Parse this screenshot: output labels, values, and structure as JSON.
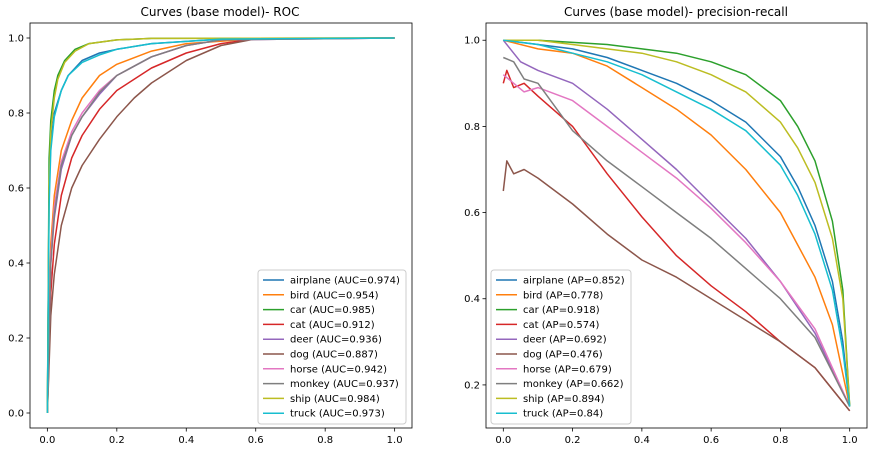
{
  "chart_data": [
    {
      "type": "line",
      "title": "Curves (base model)- ROC",
      "xlabel": "",
      "ylabel": "",
      "xlim": [
        -0.05,
        1.05
      ],
      "ylim": [
        -0.04,
        1.04
      ],
      "xticks": [
        "0.0",
        "0.2",
        "0.4",
        "0.6",
        "0.8",
        "1.0"
      ],
      "yticks": [
        "0.0",
        "0.2",
        "0.4",
        "0.6",
        "0.8",
        "1.0"
      ],
      "grid": false,
      "legend_position": "bottom-right",
      "series": [
        {
          "name": "airplane (AUC=0.974)",
          "color": "#1f77b4",
          "x": [
            0,
            0.005,
            0.01,
            0.02,
            0.04,
            0.06,
            0.1,
            0.15,
            0.2,
            0.3,
            0.5,
            1.0
          ],
          "y": [
            0,
            0.6,
            0.72,
            0.8,
            0.86,
            0.9,
            0.94,
            0.96,
            0.97,
            0.985,
            0.997,
            1.0
          ]
        },
        {
          "name": "bird (AUC=0.954)",
          "color": "#ff7f0e",
          "x": [
            0,
            0.01,
            0.02,
            0.04,
            0.07,
            0.1,
            0.15,
            0.2,
            0.3,
            0.4,
            0.6,
            1.0
          ],
          "y": [
            0,
            0.45,
            0.58,
            0.7,
            0.78,
            0.84,
            0.9,
            0.93,
            0.965,
            0.985,
            0.998,
            1.0
          ]
        },
        {
          "name": "car (AUC=0.985)",
          "color": "#2ca02c",
          "x": [
            0,
            0.005,
            0.01,
            0.02,
            0.03,
            0.05,
            0.08,
            0.12,
            0.2,
            0.3,
            1.0
          ],
          "y": [
            0,
            0.68,
            0.78,
            0.86,
            0.9,
            0.94,
            0.97,
            0.985,
            0.995,
            0.999,
            1.0
          ]
        },
        {
          "name": "cat (AUC=0.912)",
          "color": "#d62728",
          "x": [
            0,
            0.01,
            0.02,
            0.04,
            0.07,
            0.1,
            0.15,
            0.2,
            0.3,
            0.4,
            0.5,
            0.6,
            1.0
          ],
          "y": [
            0,
            0.32,
            0.45,
            0.58,
            0.68,
            0.74,
            0.81,
            0.86,
            0.92,
            0.96,
            0.985,
            0.998,
            1.0
          ]
        },
        {
          "name": "deer (AUC=0.936)",
          "color": "#9467bd",
          "x": [
            0,
            0.01,
            0.02,
            0.04,
            0.07,
            0.1,
            0.15,
            0.2,
            0.3,
            0.4,
            0.5,
            1.0
          ],
          "y": [
            0,
            0.4,
            0.52,
            0.65,
            0.74,
            0.79,
            0.85,
            0.9,
            0.95,
            0.98,
            0.995,
            1.0
          ]
        },
        {
          "name": "dog (AUC=0.887)",
          "color": "#8c564b",
          "x": [
            0,
            0.01,
            0.02,
            0.04,
            0.07,
            0.1,
            0.15,
            0.2,
            0.25,
            0.3,
            0.4,
            0.5,
            0.6,
            1.0
          ],
          "y": [
            0,
            0.26,
            0.37,
            0.5,
            0.6,
            0.66,
            0.73,
            0.79,
            0.84,
            0.88,
            0.94,
            0.98,
            0.998,
            1.0
          ]
        },
        {
          "name": "horse (AUC=0.942)",
          "color": "#e377c2",
          "x": [
            0,
            0.01,
            0.02,
            0.04,
            0.07,
            0.1,
            0.15,
            0.2,
            0.3,
            0.4,
            0.5,
            1.0
          ],
          "y": [
            0,
            0.42,
            0.55,
            0.67,
            0.75,
            0.8,
            0.86,
            0.9,
            0.95,
            0.98,
            0.995,
            1.0
          ]
        },
        {
          "name": "monkey (AUC=0.937)",
          "color": "#7f7f7f",
          "x": [
            0,
            0.01,
            0.02,
            0.04,
            0.07,
            0.1,
            0.15,
            0.2,
            0.3,
            0.4,
            0.5,
            1.0
          ],
          "y": [
            0,
            0.4,
            0.53,
            0.66,
            0.74,
            0.79,
            0.855,
            0.9,
            0.95,
            0.98,
            0.995,
            1.0
          ]
        },
        {
          "name": "ship (AUC=0.984)",
          "color": "#bcbd22",
          "x": [
            0,
            0.005,
            0.01,
            0.02,
            0.03,
            0.05,
            0.08,
            0.12,
            0.2,
            0.3,
            1.0
          ],
          "y": [
            0,
            0.6,
            0.75,
            0.84,
            0.89,
            0.935,
            0.965,
            0.985,
            0.995,
            0.999,
            1.0
          ]
        },
        {
          "name": "truck (AUC=0.973)",
          "color": "#17becf",
          "x": [
            0,
            0.005,
            0.01,
            0.02,
            0.04,
            0.06,
            0.1,
            0.15,
            0.2,
            0.3,
            0.5,
            1.0
          ],
          "y": [
            0,
            0.55,
            0.7,
            0.79,
            0.86,
            0.9,
            0.935,
            0.955,
            0.97,
            0.985,
            0.997,
            1.0
          ]
        }
      ]
    },
    {
      "type": "line",
      "title": "Curves (base model)- precision-recall",
      "xlabel": "",
      "ylabel": "",
      "xlim": [
        -0.05,
        1.05
      ],
      "ylim": [
        0.1,
        1.04
      ],
      "xticks": [
        "0.0",
        "0.2",
        "0.4",
        "0.6",
        "0.8",
        "1.0"
      ],
      "yticks": [
        "0.2",
        "0.4",
        "0.6",
        "0.8",
        "1.0"
      ],
      "grid": false,
      "legend_position": "bottom-left",
      "series": [
        {
          "name": "airplane (AP=0.852)",
          "color": "#1f77b4",
          "x": [
            0,
            0.1,
            0.2,
            0.3,
            0.4,
            0.5,
            0.6,
            0.7,
            0.8,
            0.85,
            0.9,
            0.95,
            0.98,
            1.0
          ],
          "y": [
            1.0,
            0.99,
            0.98,
            0.96,
            0.93,
            0.9,
            0.86,
            0.81,
            0.73,
            0.66,
            0.57,
            0.44,
            0.3,
            0.15
          ]
        },
        {
          "name": "bird (AP=0.778)",
          "color": "#ff7f0e",
          "x": [
            0,
            0.1,
            0.2,
            0.3,
            0.4,
            0.5,
            0.6,
            0.7,
            0.8,
            0.9,
            0.95,
            1.0
          ],
          "y": [
            1.0,
            0.98,
            0.97,
            0.94,
            0.89,
            0.84,
            0.78,
            0.7,
            0.6,
            0.45,
            0.34,
            0.15
          ]
        },
        {
          "name": "car (AP=0.918)",
          "color": "#2ca02c",
          "x": [
            0,
            0.1,
            0.2,
            0.3,
            0.4,
            0.5,
            0.6,
            0.7,
            0.8,
            0.85,
            0.9,
            0.95,
            0.98,
            1.0
          ],
          "y": [
            1.0,
            1.0,
            0.995,
            0.99,
            0.98,
            0.97,
            0.95,
            0.92,
            0.86,
            0.8,
            0.72,
            0.58,
            0.42,
            0.15
          ]
        },
        {
          "name": "cat (AP=0.574)",
          "color": "#d62728",
          "x": [
            0,
            0.01,
            0.03,
            0.06,
            0.1,
            0.2,
            0.3,
            0.4,
            0.5,
            0.6,
            0.7,
            0.8,
            0.9,
            1.0
          ],
          "y": [
            0.9,
            0.93,
            0.89,
            0.9,
            0.87,
            0.8,
            0.69,
            0.59,
            0.5,
            0.43,
            0.37,
            0.3,
            0.24,
            0.14
          ]
        },
        {
          "name": "deer (AP=0.692)",
          "color": "#9467bd",
          "x": [
            0,
            0.05,
            0.1,
            0.2,
            0.3,
            0.4,
            0.5,
            0.6,
            0.7,
            0.8,
            0.9,
            1.0
          ],
          "y": [
            1.0,
            0.95,
            0.93,
            0.9,
            0.84,
            0.77,
            0.7,
            0.62,
            0.54,
            0.44,
            0.32,
            0.15
          ]
        },
        {
          "name": "dog (AP=0.476)",
          "color": "#8c564b",
          "x": [
            0,
            0.01,
            0.03,
            0.06,
            0.1,
            0.2,
            0.3,
            0.4,
            0.5,
            0.6,
            0.7,
            0.8,
            0.9,
            1.0
          ],
          "y": [
            0.65,
            0.72,
            0.69,
            0.7,
            0.68,
            0.62,
            0.55,
            0.49,
            0.45,
            0.4,
            0.35,
            0.3,
            0.24,
            0.14
          ]
        },
        {
          "name": "horse (AP=0.679)",
          "color": "#e377c2",
          "x": [
            0,
            0.03,
            0.06,
            0.1,
            0.2,
            0.3,
            0.4,
            0.5,
            0.6,
            0.7,
            0.8,
            0.9,
            1.0
          ],
          "y": [
            0.92,
            0.9,
            0.88,
            0.89,
            0.86,
            0.8,
            0.74,
            0.68,
            0.61,
            0.53,
            0.44,
            0.33,
            0.15
          ]
        },
        {
          "name": "monkey (AP=0.662)",
          "color": "#7f7f7f",
          "x": [
            0,
            0.03,
            0.06,
            0.1,
            0.2,
            0.3,
            0.4,
            0.5,
            0.6,
            0.7,
            0.8,
            0.9,
            1.0
          ],
          "y": [
            0.96,
            0.95,
            0.91,
            0.9,
            0.79,
            0.72,
            0.66,
            0.6,
            0.54,
            0.47,
            0.4,
            0.31,
            0.15
          ]
        },
        {
          "name": "ship (AP=0.894)",
          "color": "#bcbd22",
          "x": [
            0,
            0.1,
            0.2,
            0.3,
            0.4,
            0.5,
            0.6,
            0.7,
            0.8,
            0.85,
            0.9,
            0.95,
            0.98,
            1.0
          ],
          "y": [
            1.0,
            1.0,
            0.99,
            0.98,
            0.97,
            0.95,
            0.92,
            0.88,
            0.81,
            0.75,
            0.67,
            0.54,
            0.4,
            0.15
          ]
        },
        {
          "name": "truck (AP=0.84)",
          "color": "#17becf",
          "x": [
            0,
            0.1,
            0.2,
            0.3,
            0.4,
            0.5,
            0.6,
            0.7,
            0.8,
            0.85,
            0.9,
            0.95,
            0.98,
            1.0
          ],
          "y": [
            1.0,
            0.99,
            0.97,
            0.95,
            0.92,
            0.88,
            0.84,
            0.79,
            0.71,
            0.64,
            0.55,
            0.42,
            0.28,
            0.15
          ]
        }
      ]
    }
  ]
}
